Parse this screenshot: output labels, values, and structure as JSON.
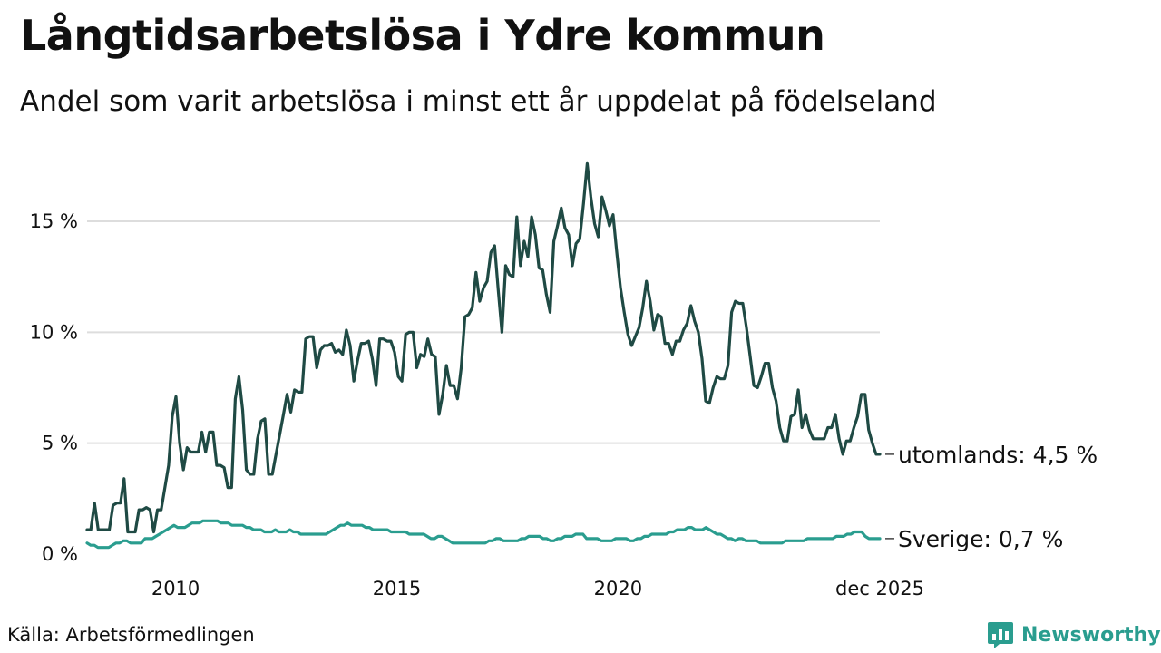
{
  "title": "Långtidsarbetslösa i Ydre kommun",
  "subtitle": "Andel som varit arbetslösa i minst ett år uppdelat på födelseland",
  "source": "Källa: Arbetsförmedlingen",
  "brand": {
    "name": "Newsworthy",
    "icon": "newsworthy-logo-icon",
    "color": "#2a9d8f"
  },
  "chart_data": {
    "type": "line",
    "title": "Långtidsarbetslösa i Ydre kommun",
    "subtitle": "Andel som varit arbetslösa i minst ett år uppdelat på födelseland",
    "xlabel": "",
    "ylabel": "",
    "x_start": 2008.0,
    "x_end": 2025.917,
    "xlim": [
      2008.0,
      2025.917
    ],
    "ylim": [
      0,
      17.5
    ],
    "grid": true,
    "x_ticks": [
      {
        "value": 2010,
        "label": "2010"
      },
      {
        "value": 2015,
        "label": "2015"
      },
      {
        "value": 2020,
        "label": "2020"
      },
      {
        "value": 2025.917,
        "label": "dec 2025"
      }
    ],
    "y_ticks": [
      {
        "value": 0,
        "label": "0 %"
      },
      {
        "value": 5,
        "label": "5 %"
      },
      {
        "value": 10,
        "label": "10 %"
      },
      {
        "value": 15,
        "label": "15 %"
      }
    ],
    "series": [
      {
        "name": "utomlands",
        "end_label": "utomlands: 4,5 %",
        "color": "#1f4a44",
        "values": [
          1.1,
          1.1,
          2.3,
          1.1,
          1.1,
          1.1,
          1.1,
          2.2,
          2.3,
          2.3,
          3.4,
          1.0,
          1.0,
          1.0,
          2.0,
          2.0,
          2.1,
          2.0,
          1.0,
          2.0,
          2.0,
          3.0,
          4.0,
          6.2,
          7.1,
          5.0,
          3.8,
          4.8,
          4.6,
          4.6,
          4.6,
          5.5,
          4.6,
          5.5,
          5.5,
          4.0,
          4.0,
          3.9,
          3.0,
          3.0,
          7.0,
          8.0,
          6.5,
          3.8,
          3.6,
          3.6,
          5.2,
          6.0,
          6.1,
          3.6,
          3.6,
          4.5,
          5.4,
          6.3,
          7.2,
          6.4,
          7.4,
          7.3,
          7.3,
          9.7,
          9.8,
          9.8,
          8.4,
          9.2,
          9.4,
          9.4,
          9.5,
          9.1,
          9.2,
          9.0,
          10.1,
          9.4,
          7.8,
          8.7,
          9.5,
          9.5,
          9.6,
          8.8,
          7.6,
          9.7,
          9.7,
          9.6,
          9.6,
          9.1,
          8.0,
          7.8,
          9.9,
          10.0,
          10.0,
          8.4,
          9.0,
          8.9,
          9.7,
          9.0,
          8.9,
          6.3,
          7.2,
          8.5,
          7.6,
          7.6,
          7.0,
          8.4,
          10.7,
          10.8,
          11.1,
          12.7,
          11.4,
          12.0,
          12.3,
          13.6,
          13.9,
          11.9,
          10.0,
          13.0,
          12.6,
          12.5,
          15.2,
          13.0,
          14.1,
          13.4,
          15.2,
          14.4,
          12.9,
          12.8,
          11.7,
          10.9,
          14.1,
          14.8,
          15.6,
          14.7,
          14.4,
          13.0,
          14.0,
          14.2,
          15.8,
          17.6,
          16.1,
          14.9,
          14.3,
          16.1,
          15.5,
          14.8,
          15.3,
          13.6,
          12.0,
          10.9,
          9.9,
          9.4,
          9.8,
          10.2,
          11.1,
          12.3,
          11.4,
          10.1,
          10.8,
          10.7,
          9.5,
          9.5,
          9.0,
          9.6,
          9.6,
          10.1,
          10.4,
          11.2,
          10.5,
          10.0,
          8.8,
          6.9,
          6.8,
          7.5,
          8.0,
          7.9,
          7.9,
          8.5,
          10.9,
          11.4,
          11.3,
          11.3,
          10.2,
          8.9,
          7.6,
          7.5,
          8.0,
          8.6,
          8.6,
          7.5,
          6.9,
          5.7,
          5.1,
          5.1,
          6.2,
          6.3,
          7.4,
          5.7,
          6.3,
          5.6,
          5.2,
          5.2,
          5.2,
          5.2,
          5.7,
          5.7,
          6.3,
          5.2,
          4.5,
          5.1,
          5.1,
          5.7,
          6.2,
          7.2,
          7.2,
          5.6,
          5.0,
          4.5,
          4.5
        ]
      },
      {
        "name": "Sverige",
        "end_label": "Sverige: 0,7 %",
        "color": "#2a9d8f",
        "values": [
          0.5,
          0.4,
          0.4,
          0.3,
          0.3,
          0.3,
          0.3,
          0.4,
          0.5,
          0.5,
          0.6,
          0.6,
          0.5,
          0.5,
          0.5,
          0.5,
          0.7,
          0.7,
          0.7,
          0.8,
          0.9,
          1.0,
          1.1,
          1.2,
          1.3,
          1.2,
          1.2,
          1.2,
          1.3,
          1.4,
          1.4,
          1.4,
          1.5,
          1.5,
          1.5,
          1.5,
          1.5,
          1.4,
          1.4,
          1.4,
          1.3,
          1.3,
          1.3,
          1.3,
          1.2,
          1.2,
          1.1,
          1.1,
          1.1,
          1.0,
          1.0,
          1.0,
          1.1,
          1.0,
          1.0,
          1.0,
          1.1,
          1.0,
          1.0,
          0.9,
          0.9,
          0.9,
          0.9,
          0.9,
          0.9,
          0.9,
          0.9,
          1.0,
          1.1,
          1.2,
          1.3,
          1.3,
          1.4,
          1.3,
          1.3,
          1.3,
          1.3,
          1.2,
          1.2,
          1.1,
          1.1,
          1.1,
          1.1,
          1.1,
          1.0,
          1.0,
          1.0,
          1.0,
          1.0,
          0.9,
          0.9,
          0.9,
          0.9,
          0.9,
          0.8,
          0.7,
          0.7,
          0.8,
          0.8,
          0.7,
          0.6,
          0.5,
          0.5,
          0.5,
          0.5,
          0.5,
          0.5,
          0.5,
          0.5,
          0.5,
          0.5,
          0.6,
          0.6,
          0.7,
          0.7,
          0.6,
          0.6,
          0.6,
          0.6,
          0.6,
          0.7,
          0.7,
          0.8,
          0.8,
          0.8,
          0.8,
          0.7,
          0.7,
          0.6,
          0.6,
          0.7,
          0.7,
          0.8,
          0.8,
          0.8,
          0.9,
          0.9,
          0.9,
          0.7,
          0.7,
          0.7,
          0.7,
          0.6,
          0.6,
          0.6,
          0.6,
          0.7,
          0.7,
          0.7,
          0.7,
          0.6,
          0.6,
          0.7,
          0.7,
          0.8,
          0.8,
          0.9,
          0.9,
          0.9,
          0.9,
          0.9,
          1.0,
          1.0,
          1.1,
          1.1,
          1.1,
          1.2,
          1.2,
          1.1,
          1.1,
          1.1,
          1.2,
          1.1,
          1.0,
          0.9,
          0.9,
          0.8,
          0.7,
          0.7,
          0.6,
          0.7,
          0.7,
          0.6,
          0.6,
          0.6,
          0.6,
          0.5,
          0.5,
          0.5,
          0.5,
          0.5,
          0.5,
          0.5,
          0.6,
          0.6,
          0.6,
          0.6,
          0.6,
          0.6,
          0.7,
          0.7,
          0.7,
          0.7,
          0.7,
          0.7,
          0.7,
          0.7,
          0.8,
          0.8,
          0.8,
          0.9,
          0.9,
          1.0,
          1.0,
          1.0,
          0.8,
          0.7,
          0.7,
          0.7,
          0.7
        ]
      }
    ]
  }
}
